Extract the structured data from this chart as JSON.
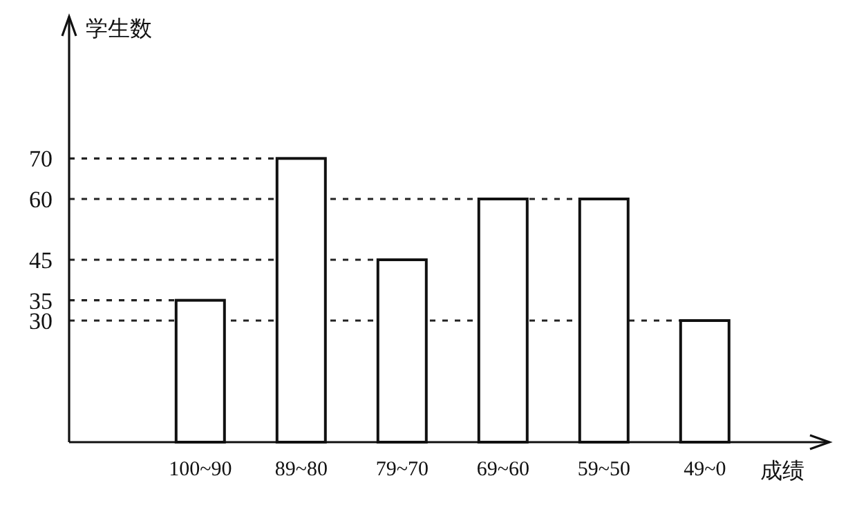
{
  "chart_data": {
    "type": "bar",
    "xlabel": "成绩",
    "ylabel": "学生数",
    "categories": [
      "100~90",
      "89~80",
      "79~70",
      "69~60",
      "59~50",
      "49~0"
    ],
    "values": [
      35,
      70,
      45,
      60,
      60,
      30
    ],
    "color": "#ffffff",
    "ylim": [
      0,
      105
    ],
    "yticks": [
      30,
      35,
      45,
      60,
      70
    ],
    "ref_lines": [
      {
        "axis": "y",
        "value": 70,
        "line_style": "dashed"
      },
      {
        "axis": "y",
        "value": 60,
        "line_style": "dashed"
      },
      {
        "axis": "y",
        "value": 45,
        "line_style": "dashed"
      },
      {
        "axis": "y",
        "value": 35,
        "line_style": "dashed"
      },
      {
        "axis": "y",
        "value": 30,
        "line_style": "dashed"
      }
    ]
  }
}
